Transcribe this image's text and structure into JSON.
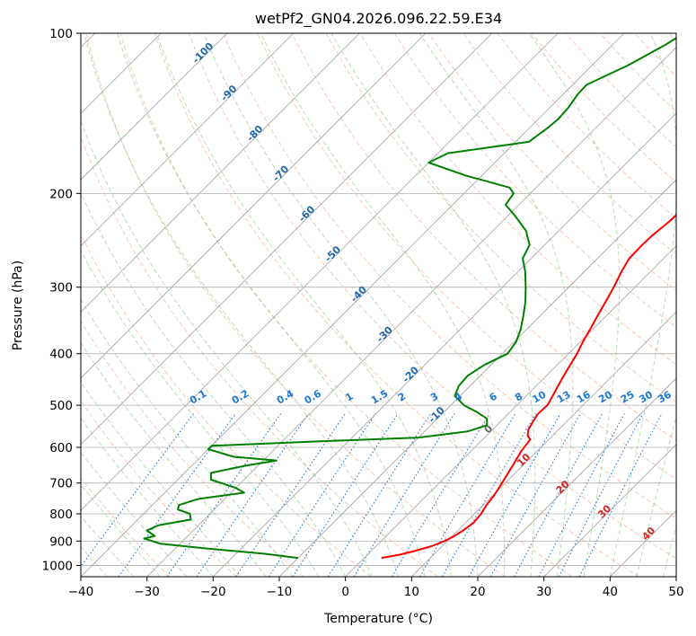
{
  "chart_data": {
    "type": "line",
    "title": "wetPf2_GN04.2026.096.22.59.E34",
    "xlabel": "Temperature (°C)",
    "ylabel": "Pressure (hPa)",
    "xlim": [
      -40,
      50
    ],
    "ylim": [
      1050,
      100
    ],
    "y_scale": "log",
    "x_ticks": [
      -40,
      -30,
      -20,
      -10,
      0,
      10,
      20,
      30,
      40,
      50
    ],
    "x_tick_labels": [
      "−40",
      "−30",
      "−20",
      "−10",
      "0",
      "10",
      "20",
      "30",
      "40",
      "50"
    ],
    "y_ticks": [
      100,
      200,
      300,
      400,
      500,
      600,
      700,
      800,
      900,
      1000
    ],
    "y_tick_labels": [
      "100",
      "200",
      "300",
      "400",
      "500",
      "600",
      "700",
      "800",
      "900",
      "1000"
    ],
    "grid": true,
    "background_lines": {
      "isotherms_color": "#a0a0a0",
      "dry_adiabats_color": "#f4a582",
      "dry_adiabat_labels": [
        "-100",
        "-90",
        "-80",
        "-70",
        "-60",
        "-50",
        "-40",
        "-30",
        "-20",
        "-10"
      ],
      "dry_adiabat_label_color": "#2166ac",
      "moist_adiabats_color": "#7fbf7b",
      "moist_adiabat_labels": [
        "0",
        "10",
        "20",
        "30",
        "40"
      ],
      "moist_adiabat_label_colors": [
        "#666666",
        "#d62728",
        "#d62728",
        "#d62728",
        "#d62728"
      ],
      "mixing_ratio_color": "#1f78d1",
      "mixing_ratio_labels": [
        "0.1",
        "0.2",
        "0.4",
        "0.6",
        "1",
        "1.5",
        "2",
        "3",
        "4",
        "6",
        "8",
        "10",
        "13",
        "16",
        "20",
        "25",
        "30",
        "36"
      ],
      "mixing_ratio_values": [
        0.1,
        0.2,
        0.4,
        0.6,
        1,
        1.5,
        2,
        3,
        4,
        6,
        8,
        10,
        13,
        16,
        20,
        25,
        30,
        36
      ],
      "mixing_ratio_label_pressure": 500
    },
    "series": [
      {
        "color": "#ff0000",
        "points": [
          [
            968,
            2.6
          ],
          [
            955,
            4.8
          ],
          [
            940,
            6.5
          ],
          [
            920,
            8.4
          ],
          [
            900,
            9.6
          ],
          [
            880,
            10.3
          ],
          [
            860,
            10.8
          ],
          [
            830,
            11.2
          ],
          [
            800,
            11.0
          ],
          [
            770,
            10.5
          ],
          [
            740,
            10.2
          ],
          [
            700,
            9.5
          ],
          [
            650,
            8.5
          ],
          [
            610,
            7.6
          ],
          [
            580,
            7.2
          ],
          [
            570,
            6.2
          ],
          [
            555,
            5.4
          ],
          [
            540,
            5.0
          ],
          [
            520,
            4.5
          ],
          [
            500,
            4.6
          ],
          [
            480,
            4.0
          ],
          [
            460,
            3.3
          ],
          [
            430,
            2.3
          ],
          [
            400,
            1.3
          ],
          [
            380,
            0.4
          ],
          [
            360,
            -0.4
          ],
          [
            340,
            -1.3
          ],
          [
            320,
            -2.2
          ],
          [
            300,
            -3.2
          ],
          [
            280,
            -4.4
          ],
          [
            265,
            -5.2
          ],
          [
            250,
            -5.3
          ],
          [
            240,
            -5.2
          ],
          [
            225,
            -4.7
          ],
          [
            215,
            -4.6
          ],
          [
            200,
            -4.2
          ],
          [
            180,
            -3.5
          ],
          [
            160,
            -3.3
          ],
          [
            145,
            -3.9
          ],
          [
            138,
            -3.5
          ],
          [
            130,
            -3.6
          ],
          [
            120,
            -3.0
          ],
          [
            110,
            -1.8
          ],
          [
            100,
            -1.7
          ]
        ]
      },
      {
        "color": "#008000",
        "points": [
          [
            968,
            -10.0
          ],
          [
            950,
            -16.0
          ],
          [
            930,
            -25.0
          ],
          [
            910,
            -33.0
          ],
          [
            890,
            -36.2
          ],
          [
            880,
            -35.0
          ],
          [
            860,
            -37.0
          ],
          [
            840,
            -36.0
          ],
          [
            820,
            -32.0
          ],
          [
            800,
            -33.0
          ],
          [
            785,
            -35.5
          ],
          [
            770,
            -36.0
          ],
          [
            750,
            -34.0
          ],
          [
            730,
            -28.0
          ],
          [
            715,
            -30.0
          ],
          [
            690,
            -35.0
          ],
          [
            670,
            -36.0
          ],
          [
            650,
            -32.0
          ],
          [
            635,
            -28.0
          ],
          [
            625,
            -35.0
          ],
          [
            605,
            -40.0
          ],
          [
            596,
            -40.0
          ],
          [
            585,
            -25.0
          ],
          [
            575,
            -10.0
          ],
          [
            560,
            -3.5
          ],
          [
            545,
            -1.5
          ],
          [
            530,
            -2.5
          ],
          [
            515,
            -5.0
          ],
          [
            500,
            -8.0
          ],
          [
            480,
            -10.8
          ],
          [
            460,
            -11.7
          ],
          [
            440,
            -11.9
          ],
          [
            420,
            -11.0
          ],
          [
            400,
            -9.2
          ],
          [
            380,
            -9.7
          ],
          [
            360,
            -10.9
          ],
          [
            340,
            -12.5
          ],
          [
            320,
            -14.3
          ],
          [
            300,
            -16.5
          ],
          [
            280,
            -19.0
          ],
          [
            265,
            -21.3
          ],
          [
            250,
            -22.3
          ],
          [
            235,
            -25.0
          ],
          [
            220,
            -29.0
          ],
          [
            210,
            -32.0
          ],
          [
            200,
            -32.5
          ],
          [
            195,
            -34.0
          ],
          [
            185,
            -42.5
          ],
          [
            175,
            -50.0
          ],
          [
            168,
            -48.5
          ],
          [
            160,
            -38.0
          ],
          [
            150,
            -37.2
          ],
          [
            145,
            -37.0
          ],
          [
            138,
            -37.2
          ],
          [
            130,
            -37.8
          ],
          [
            125,
            -37.9
          ],
          [
            115,
            -34.6
          ],
          [
            105,
            -32.0
          ],
          [
            100,
            -31.0
          ]
        ]
      }
    ]
  }
}
